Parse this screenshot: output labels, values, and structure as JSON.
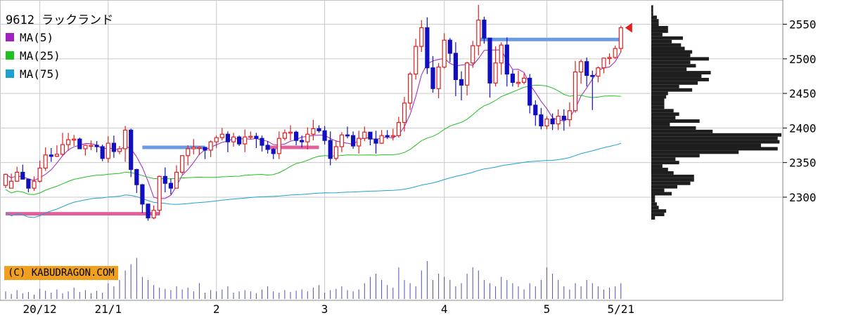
{
  "header": {
    "title": "9612 ラックランド"
  },
  "legend": [
    {
      "label": "MA(5)",
      "color": "#a020c0"
    },
    {
      "label": "MA(25)",
      "color": "#20c020"
    },
    {
      "label": "MA(75)",
      "color": "#20a0d0"
    }
  ],
  "credit": "(C) KABUDRAGON.COM",
  "colors": {
    "up": "#e02020",
    "down": "#1010c0",
    "grid": "#c8c8c8",
    "profile": "#1e1e1e",
    "resistance": "#6a9ae6",
    "support": "#e0609c"
  },
  "chart_data": {
    "type": "candlestick",
    "title": "9612 ラックランド",
    "y_ticks": [
      2300,
      2350,
      2400,
      2450,
      2500,
      2550
    ],
    "x_ticks": [
      {
        "label": "20/12",
        "index": 6
      },
      {
        "label": "21/1",
        "index": 18
      },
      {
        "label": "2",
        "index": 37
      },
      {
        "label": "3",
        "index": 56
      },
      {
        "label": "4",
        "index": 77
      },
      {
        "label": "5",
        "index": 95
      },
      {
        "label": "5/21",
        "index": 108
      }
    ],
    "candles": [
      [
        2317,
        2333,
        2313,
        2334
      ],
      [
        2313,
        2323,
        2313,
        2334
      ],
      [
        2323,
        2336,
        2322,
        2344
      ],
      [
        2336,
        2326,
        2326,
        2347
      ],
      [
        2326,
        2313,
        2307,
        2327
      ],
      [
        2313,
        2323,
        2309,
        2330
      ],
      [
        2323,
        2342,
        2321,
        2353
      ],
      [
        2342,
        2361,
        2338,
        2372
      ],
      [
        2361,
        2359,
        2351,
        2371
      ],
      [
        2359,
        2362,
        2358,
        2375
      ],
      [
        2362,
        2376,
        2359,
        2393
      ],
      [
        2376,
        2383,
        2367,
        2393
      ],
      [
        2383,
        2384,
        2374,
        2390
      ],
      [
        2384,
        2370,
        2370,
        2386
      ],
      [
        2370,
        2375,
        2360,
        2376
      ],
      [
        2375,
        2375,
        2368,
        2382
      ],
      [
        2375,
        2373,
        2365,
        2381
      ],
      [
        2373,
        2356,
        2352,
        2376
      ],
      [
        2356,
        2378,
        2350,
        2388
      ],
      [
        2378,
        2366,
        2357,
        2389
      ],
      [
        2366,
        2370,
        2362,
        2374
      ],
      [
        2370,
        2397,
        2351,
        2403
      ],
      [
        2397,
        2340,
        2329,
        2399
      ],
      [
        2340,
        2318,
        2306,
        2341
      ],
      [
        2318,
        2290,
        2277,
        2319
      ],
      [
        2290,
        2270,
        2266,
        2290
      ],
      [
        2270,
        2281,
        2268,
        2288
      ],
      [
        2281,
        2330,
        2274,
        2331
      ],
      [
        2330,
        2320,
        2307,
        2343
      ],
      [
        2320,
        2313,
        2304,
        2327
      ],
      [
        2313,
        2336,
        2313,
        2346
      ],
      [
        2336,
        2360,
        2333,
        2360
      ],
      [
        2360,
        2370,
        2346,
        2375
      ],
      [
        2370,
        2372,
        2362,
        2384
      ],
      [
        2372,
        2372,
        2361,
        2373
      ],
      [
        2372,
        2368,
        2355,
        2369
      ],
      [
        2368,
        2380,
        2358,
        2382
      ],
      [
        2380,
        2386,
        2371,
        2389
      ],
      [
        2386,
        2391,
        2382,
        2400
      ],
      [
        2391,
        2380,
        2365,
        2395
      ],
      [
        2380,
        2387,
        2373,
        2393
      ],
      [
        2387,
        2377,
        2374,
        2389
      ],
      [
        2377,
        2387,
        2365,
        2398
      ],
      [
        2387,
        2388,
        2384,
        2395
      ],
      [
        2388,
        2385,
        2371,
        2393
      ],
      [
        2385,
        2375,
        2366,
        2389
      ],
      [
        2375,
        2369,
        2363,
        2381
      ],
      [
        2369,
        2363,
        2355,
        2371
      ],
      [
        2363,
        2385,
        2355,
        2395
      ],
      [
        2385,
        2393,
        2382,
        2398
      ],
      [
        2393,
        2394,
        2382,
        2404
      ],
      [
        2394,
        2382,
        2375,
        2396
      ],
      [
        2382,
        2380,
        2372,
        2389
      ],
      [
        2380,
        2391,
        2369,
        2401
      ],
      [
        2391,
        2399,
        2382,
        2412
      ],
      [
        2399,
        2396,
        2393,
        2404
      ],
      [
        2396,
        2382,
        2376,
        2403
      ],
      [
        2382,
        2356,
        2346,
        2395
      ],
      [
        2356,
        2373,
        2353,
        2382
      ],
      [
        2373,
        2390,
        2365,
        2394
      ],
      [
        2390,
        2389,
        2385,
        2402
      ],
      [
        2389,
        2374,
        2370,
        2395
      ],
      [
        2374,
        2385,
        2363,
        2396
      ],
      [
        2385,
        2394,
        2381,
        2402
      ],
      [
        2394,
        2384,
        2375,
        2394
      ],
      [
        2384,
        2378,
        2363,
        2396
      ],
      [
        2378,
        2389,
        2377,
        2397
      ],
      [
        2389,
        2388,
        2384,
        2397
      ],
      [
        2388,
        2389,
        2382,
        2399
      ],
      [
        2389,
        2408,
        2386,
        2416
      ],
      [
        2408,
        2436,
        2395,
        2445
      ],
      [
        2436,
        2478,
        2426,
        2481
      ],
      [
        2478,
        2518,
        2470,
        2529
      ],
      [
        2518,
        2545,
        2510,
        2556
      ],
      [
        2545,
        2487,
        2478,
        2560
      ],
      [
        2487,
        2457,
        2451,
        2504
      ],
      [
        2457,
        2488,
        2443,
        2494
      ],
      [
        2488,
        2527,
        2486,
        2537
      ],
      [
        2527,
        2508,
        2495,
        2530
      ],
      [
        2508,
        2470,
        2446,
        2524
      ],
      [
        2470,
        2462,
        2440,
        2482
      ],
      [
        2462,
        2494,
        2447,
        2496
      ],
      [
        2494,
        2519,
        2487,
        2526
      ],
      [
        2519,
        2556,
        2505,
        2578
      ],
      [
        2556,
        2530,
        2522,
        2561
      ],
      [
        2530,
        2465,
        2444,
        2530
      ],
      [
        2465,
        2494,
        2460,
        2518
      ],
      [
        2494,
        2520,
        2477,
        2524
      ],
      [
        2520,
        2478,
        2460,
        2531
      ],
      [
        2478,
        2466,
        2460,
        2484
      ],
      [
        2466,
        2466,
        2459,
        2483
      ],
      [
        2466,
        2472,
        2463,
        2479
      ],
      [
        2472,
        2433,
        2421,
        2478
      ],
      [
        2433,
        2419,
        2403,
        2440
      ],
      [
        2419,
        2403,
        2398,
        2429
      ],
      [
        2403,
        2413,
        2398,
        2417
      ],
      [
        2413,
        2406,
        2397,
        2421
      ],
      [
        2406,
        2417,
        2397,
        2427
      ],
      [
        2417,
        2412,
        2396,
        2427
      ],
      [
        2412,
        2425,
        2402,
        2437
      ],
      [
        2425,
        2481,
        2422,
        2497
      ],
      [
        2481,
        2496,
        2464,
        2499
      ],
      [
        2496,
        2476,
        2460,
        2502
      ],
      [
        2476,
        2475,
        2426,
        2483
      ],
      [
        2475,
        2487,
        2466,
        2489
      ],
      [
        2487,
        2501,
        2479,
        2502
      ],
      [
        2501,
        2502,
        2492,
        2508
      ],
      [
        2502,
        2515,
        2500,
        2519
      ],
      [
        2515,
        2545,
        2509,
        2548
      ]
    ],
    "ma": [
      {
        "name": "MA(5)",
        "color": "#a020c0"
      },
      {
        "name": "MA(25)",
        "color": "#20c020"
      },
      {
        "name": "MA(75)",
        "color": "#20a0d0"
      }
    ],
    "volume": [
      12,
      8,
      14,
      9,
      11,
      7,
      16,
      13,
      10,
      15,
      9,
      12,
      18,
      11,
      14,
      9,
      13,
      10,
      25,
      20,
      30,
      45,
      55,
      65,
      35,
      30,
      22,
      18,
      16,
      14,
      20,
      15,
      18,
      12,
      25,
      10,
      14,
      12,
      15,
      20,
      10,
      12,
      14,
      12,
      9,
      15,
      20,
      12,
      10,
      14,
      11,
      13,
      15,
      12,
      18,
      22,
      10,
      14,
      16,
      20,
      14,
      12,
      15,
      25,
      35,
      40,
      30,
      22,
      18,
      50,
      30,
      25,
      20,
      45,
      60,
      30,
      40,
      35,
      30,
      20,
      25,
      40,
      50,
      45,
      30,
      25,
      20,
      35,
      30,
      25,
      20,
      15,
      25,
      20,
      30,
      50,
      40,
      30,
      20,
      15,
      25,
      20,
      30,
      25,
      20,
      15,
      18,
      20,
      25
    ],
    "levels": [
      {
        "kind": "resistance",
        "value": 2528,
        "from": 83,
        "to": 108
      },
      {
        "kind": "resistance",
        "value": 2372,
        "from": 24,
        "to": 35
      },
      {
        "kind": "support",
        "value": 2276,
        "from": 0,
        "to": 27
      },
      {
        "kind": "support",
        "value": 2372,
        "from": 46,
        "to": 55
      }
    ],
    "last_price": 2545,
    "volume_profile_note": "price-by-volume histogram",
    "ylim": [
      2235,
      2580
    ]
  }
}
